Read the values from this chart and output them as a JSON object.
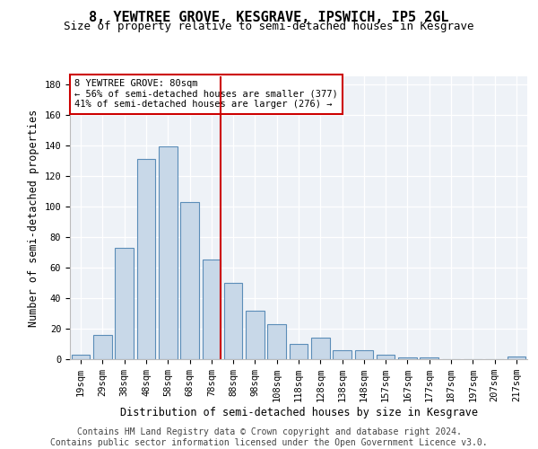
{
  "title": "8, YEWTREE GROVE, KESGRAVE, IPSWICH, IP5 2GL",
  "subtitle": "Size of property relative to semi-detached houses in Kesgrave",
  "xlabel": "Distribution of semi-detached houses by size in Kesgrave",
  "ylabel": "Number of semi-detached properties",
  "categories": [
    "19sqm",
    "29sqm",
    "38sqm",
    "48sqm",
    "58sqm",
    "68sqm",
    "78sqm",
    "88sqm",
    "98sqm",
    "108sqm",
    "118sqm",
    "128sqm",
    "138sqm",
    "148sqm",
    "157sqm",
    "167sqm",
    "177sqm",
    "187sqm",
    "197sqm",
    "207sqm",
    "217sqm"
  ],
  "values": [
    3,
    16,
    73,
    131,
    139,
    103,
    65,
    50,
    32,
    23,
    10,
    14,
    6,
    6,
    3,
    1,
    1,
    0,
    0,
    0,
    2
  ],
  "bar_color": "#c8d8e8",
  "bar_edge_color": "#5b8db8",
  "property_label": "8 YEWTREE GROVE: 80sqm",
  "pct_smaller": 56,
  "count_smaller": 377,
  "pct_larger": 41,
  "count_larger": 276,
  "vline_bar_index": 6,
  "vline_color": "#cc0000",
  "annotation_box_edgecolor": "#cc0000",
  "ylim": [
    0,
    185
  ],
  "yticks": [
    0,
    20,
    40,
    60,
    80,
    100,
    120,
    140,
    160,
    180
  ],
  "bg_color": "#eef2f7",
  "grid_color": "#ffffff",
  "title_fontsize": 11,
  "subtitle_fontsize": 9,
  "axis_label_fontsize": 8.5,
  "tick_fontsize": 7.5,
  "footer_fontsize": 7,
  "footer_line1": "Contains HM Land Registry data © Crown copyright and database right 2024.",
  "footer_line2": "Contains public sector information licensed under the Open Government Licence v3.0."
}
